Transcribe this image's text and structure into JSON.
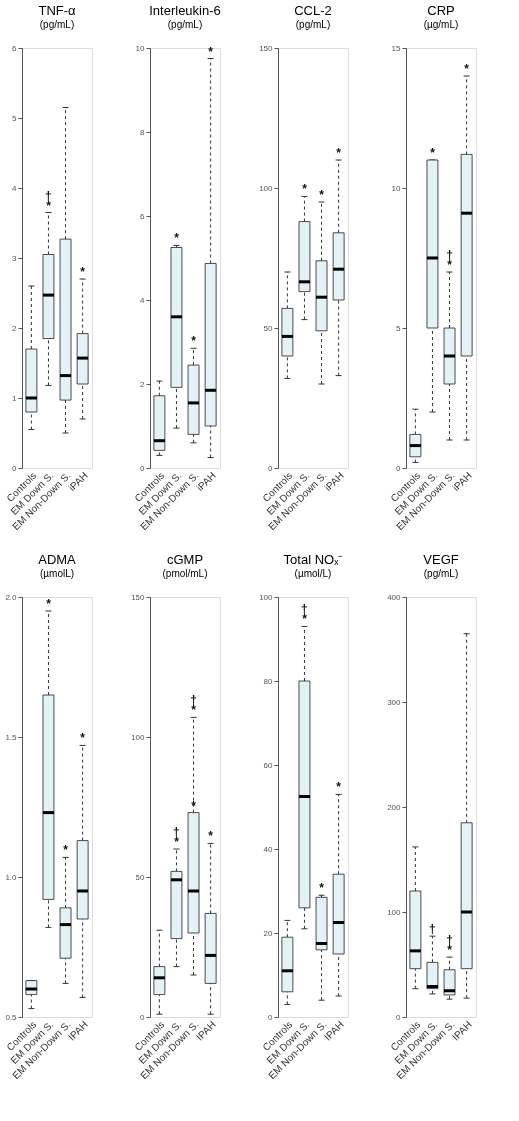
{
  "chart_data": [
    {
      "type": "box",
      "title": "TNF-α",
      "subtitle": "(pg/mL)",
      "categories": [
        "Controls",
        "EM Down S.",
        "EM Non-Down S.",
        "iPAH"
      ],
      "color": "#e4f1f6",
      "ylim": [
        0,
        6
      ],
      "yticks": [
        0,
        1,
        2,
        3,
        4,
        5,
        6
      ],
      "boxes": [
        {
          "low": 0.55,
          "q1": 0.8,
          "median": 1.0,
          "q3": 1.7,
          "high": 2.6
        },
        {
          "low": 1.18,
          "q1": 1.85,
          "median": 2.47,
          "q3": 3.05,
          "high": 3.65
        },
        {
          "low": 0.5,
          "q1": 0.97,
          "median": 1.32,
          "q3": 3.27,
          "high": 5.15
        },
        {
          "low": 0.7,
          "q1": 1.2,
          "median": 1.57,
          "q3": 1.92,
          "high": 2.7
        }
      ],
      "annotations": [
        {
          "text": "*",
          "x": "EM Down S.",
          "y": 3.65
        },
        {
          "text": "†",
          "x": "EM Down S.",
          "y": 3.65
        },
        {
          "text": "*",
          "x": "iPAH",
          "y": 2.7
        }
      ]
    },
    {
      "type": "box",
      "title": "Interleukin-6",
      "subtitle": "(pg/mL)",
      "categories": [
        "Controls",
        "EM Down S.",
        "EM Non-Down S.",
        "iPAH"
      ],
      "color": "#e4f1f6",
      "ylim": [
        0,
        10
      ],
      "yticks": [
        0,
        2,
        4,
        6,
        8,
        10
      ],
      "boxes": [
        {
          "low": 0.3,
          "q1": 0.42,
          "median": 0.65,
          "q3": 1.72,
          "high": 2.07
        },
        {
          "low": 0.95,
          "q1": 1.92,
          "median": 3.6,
          "q3": 5.25,
          "high": 5.3
        },
        {
          "low": 0.6,
          "q1": 0.8,
          "median": 1.55,
          "q3": 2.45,
          "high": 2.85
        },
        {
          "low": 0.25,
          "q1": 1.0,
          "median": 1.85,
          "q3": 4.87,
          "high": 9.75
        }
      ],
      "annotations": [
        {
          "text": "*",
          "x": "EM Down S.",
          "y": 5.3
        },
        {
          "text": "*",
          "x": "EM Non-Down S.",
          "y": 2.85
        },
        {
          "text": "*",
          "x": "iPAH",
          "y": 9.75
        }
      ]
    },
    {
      "type": "box",
      "title": "CCL-2",
      "subtitle": "(pg/mL)",
      "categories": [
        "Controls",
        "EM Down S.",
        "EM Non-Down S.",
        "iPAH"
      ],
      "color": "#e4f1f6",
      "ylim": [
        0,
        150
      ],
      "yticks": [
        0,
        50,
        100,
        150
      ],
      "boxes": [
        {
          "low": 32,
          "q1": 40,
          "median": 47,
          "q3": 57,
          "high": 70
        },
        {
          "low": 53,
          "q1": 63,
          "median": 66.5,
          "q3": 88,
          "high": 97
        },
        {
          "low": 30,
          "q1": 49,
          "median": 61,
          "q3": 74,
          "high": 95
        },
        {
          "low": 33,
          "q1": 60,
          "median": 71,
          "q3": 84,
          "high": 110
        }
      ],
      "annotations": [
        {
          "text": "*",
          "x": "EM Down S.",
          "y": 97
        },
        {
          "text": "*",
          "x": "EM Non-Down S.",
          "y": 95
        },
        {
          "text": "*",
          "x": "iPAH",
          "y": 110
        }
      ]
    },
    {
      "type": "box",
      "title": "CRP",
      "subtitle": "(µg/mL)",
      "categories": [
        "Controls",
        "EM Down S.",
        "EM Non-Down S.",
        "iPAH"
      ],
      "color": "#e4f1f6",
      "ylim": [
        0,
        15
      ],
      "yticks": [
        0,
        5,
        10,
        15
      ],
      "boxes": [
        {
          "low": 0.2,
          "q1": 0.4,
          "median": 0.8,
          "q3": 1.2,
          "high": 2.1
        },
        {
          "low": 2.0,
          "q1": 5.0,
          "median": 7.5,
          "q3": 11.0,
          "high": 11.0
        },
        {
          "low": 1.0,
          "q1": 3.0,
          "median": 4.0,
          "q3": 5.0,
          "high": 7.0
        },
        {
          "low": 1.0,
          "q1": 4.0,
          "median": 9.1,
          "q3": 11.2,
          "high": 14.0
        }
      ],
      "annotations": [
        {
          "text": "*",
          "x": "EM Down S.",
          "y": 11.0
        },
        {
          "text": "*",
          "x": "EM Non-Down S.",
          "y": 7.0
        },
        {
          "text": "†",
          "x": "EM Non-Down S.",
          "y": 7.0
        },
        {
          "text": "*",
          "x": "iPAH",
          "y": 14.0
        }
      ]
    },
    {
      "type": "box",
      "title": "ADMA",
      "subtitle": "(µmolL)",
      "categories": [
        "Controls",
        "EM Down S.",
        "EM Non-Down S.",
        "IPAH"
      ],
      "color": "#e4f1f6",
      "ylim": [
        0.5,
        2.0
      ],
      "yticks": [
        0.5,
        {
          "value": 1.0,
          "label": "1.0"
        },
        1.5,
        {
          "value": 2.0,
          "label": "2.0"
        }
      ],
      "boxes": [
        {
          "low": 0.53,
          "q1": 0.58,
          "median": 0.6,
          "q3": 0.63,
          "high": 0.63
        },
        {
          "low": 0.82,
          "q1": 0.92,
          "median": 1.23,
          "q3": 1.65,
          "high": 1.95
        },
        {
          "low": 0.62,
          "q1": 0.71,
          "median": 0.83,
          "q3": 0.89,
          "high": 1.07
        },
        {
          "low": 0.57,
          "q1": 0.85,
          "median": 0.95,
          "q3": 1.13,
          "high": 1.47
        }
      ],
      "annotations": [
        {
          "text": "*",
          "x": "EM Down S.",
          "y": 1.95
        },
        {
          "text": "*",
          "x": "EM Non-Down S.",
          "y": 1.07
        },
        {
          "text": "*",
          "x": "IPAH",
          "y": 1.47
        }
      ]
    },
    {
      "type": "box",
      "title": "cGMP",
      "subtitle": "(pmol/mL)",
      "categories": [
        "Controls",
        "EM Down S.",
        "EM Non-Down S.",
        "IPAH"
      ],
      "color": "#e4f1f6",
      "ylim": [
        0,
        150
      ],
      "yticks": [
        0,
        50,
        100,
        150
      ],
      "boxes": [
        {
          "low": 1,
          "q1": 8,
          "median": 14,
          "q3": 18,
          "high": 31
        },
        {
          "low": 18,
          "q1": 28,
          "median": 49,
          "q3": 52,
          "high": 60
        },
        {
          "low": 15,
          "q1": 30,
          "median": 45,
          "q3": 73,
          "high": 107
        },
        {
          "low": 1,
          "q1": 12,
          "median": 22,
          "q3": 37,
          "high": 62
        }
      ],
      "annotations": [
        {
          "text": "*",
          "x": "EM Down S.",
          "y": 60
        },
        {
          "text": "†",
          "x": "EM Down S.",
          "y": 60
        },
        {
          "text": "*",
          "x": "EM Non-Down S.",
          "y": 107
        },
        {
          "text": "†",
          "x": "EM Non-Down S.",
          "y": 107
        },
        {
          "text": "*",
          "x": "EM Non-Down S.",
          "y": 73
        },
        {
          "text": "*",
          "x": "IPAH",
          "y": 62
        }
      ]
    },
    {
      "type": "box",
      "title": "Total NOₓ⁻",
      "subtitle": "(µmol/L)",
      "categories": [
        "Controls",
        "EM Down S.",
        "EM Non-Down S.",
        "IPAH"
      ],
      "color": "#e4f1f6",
      "ylim": [
        0,
        100
      ],
      "yticks": [
        0,
        20,
        40,
        60,
        80,
        100
      ],
      "boxes": [
        {
          "low": 3,
          "q1": 6,
          "median": 11,
          "q3": 19,
          "high": 23
        },
        {
          "low": 21,
          "q1": 26,
          "median": 52.5,
          "q3": 80,
          "high": 93
        },
        {
          "low": 4,
          "q1": 16,
          "median": 17.5,
          "q3": 28.5,
          "high": 29
        },
        {
          "low": 5,
          "q1": 15,
          "median": 22.5,
          "q3": 34,
          "high": 53
        }
      ],
      "annotations": [
        {
          "text": "*",
          "x": "EM Down S.",
          "y": 93
        },
        {
          "text": "†",
          "x": "EM Down S.",
          "y": 93
        },
        {
          "text": "*",
          "x": "EM Non-Down S.",
          "y": 29
        },
        {
          "text": "*",
          "x": "IPAH",
          "y": 53
        }
      ]
    },
    {
      "type": "box",
      "title": "VEGF",
      "subtitle": "(pg/mL)",
      "categories": [
        "Controls",
        "EM Down S.",
        "EM Non-Down S.",
        "IPAH"
      ],
      "color": "#e4f1f6",
      "ylim": [
        0,
        400
      ],
      "yticks": [
        0,
        100,
        200,
        300,
        400
      ],
      "boxes": [
        {
          "low": 27,
          "q1": 46,
          "median": 63,
          "q3": 120,
          "high": 162
        },
        {
          "low": 22,
          "q1": 27,
          "median": 29,
          "q3": 52,
          "high": 77
        },
        {
          "low": 17,
          "q1": 21,
          "median": 25,
          "q3": 45,
          "high": 57
        },
        {
          "low": 18,
          "q1": 46,
          "median": 100,
          "q3": 185,
          "high": 365
        }
      ],
      "annotations": [
        {
          "text": "†",
          "x": "EM Down S.",
          "y": 77
        },
        {
          "text": "*",
          "x": "EM Non-Down S.",
          "y": 57
        },
        {
          "text": "†",
          "x": "EM Non-Down S.",
          "y": 57
        }
      ]
    }
  ]
}
